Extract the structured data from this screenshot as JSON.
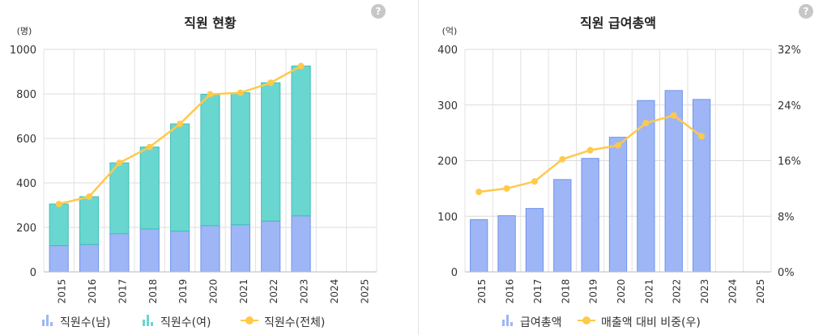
{
  "help_label": "?",
  "chart_data": [
    {
      "type": "bar",
      "title": "직원 현황",
      "y_unit": "(명)",
      "categories": [
        "2015",
        "2016",
        "2017",
        "2018",
        "2019",
        "2020",
        "2021",
        "2022",
        "2023",
        "2024",
        "2025"
      ],
      "ylim": [
        0,
        1000
      ],
      "yticks": [
        0,
        200,
        400,
        600,
        800,
        1000
      ],
      "stacked": true,
      "grid": true,
      "series": [
        {
          "name": "직원수(남)",
          "kind": "bar",
          "color": "#9eb6f5",
          "edge": "#6f93ec",
          "values": [
            118,
            123,
            172,
            193,
            183,
            208,
            212,
            228,
            252,
            null,
            null
          ]
        },
        {
          "name": "직원수(여)",
          "kind": "bar",
          "color": "#6ad6d0",
          "edge": "#3fbfb7",
          "values": [
            187,
            215,
            318,
            368,
            482,
            590,
            593,
            622,
            673,
            null,
            null
          ]
        },
        {
          "name": "직원수(전체)",
          "kind": "line",
          "color": "#ffc94a",
          "values": [
            305,
            338,
            490,
            561,
            665,
            798,
            805,
            850,
            925,
            null,
            null
          ]
        }
      ],
      "legend_position": "bottom"
    },
    {
      "type": "bar",
      "title": "직원 급여총액",
      "y_unit": "(억)",
      "categories": [
        "2015",
        "2016",
        "2017",
        "2018",
        "2019",
        "2020",
        "2021",
        "2022",
        "2023",
        "2024",
        "2025"
      ],
      "ylim": [
        0,
        400
      ],
      "yticks": [
        0,
        100,
        200,
        300,
        400
      ],
      "y2lim": [
        0,
        32
      ],
      "y2ticks": [
        "0%",
        "8%",
        "16%",
        "24%",
        "32%"
      ],
      "grid": true,
      "series": [
        {
          "name": "급여총액",
          "kind": "bar",
          "axis": "left",
          "color": "#9eb6f5",
          "edge": "#6f93ec",
          "values": [
            94,
            101,
            114,
            166,
            204,
            242,
            308,
            326,
            310,
            null,
            null
          ]
        },
        {
          "name": "매출액 대비 비중(우)",
          "kind": "line",
          "axis": "right",
          "color": "#ffc94a",
          "values": [
            11.5,
            12.0,
            13.0,
            16.2,
            17.5,
            18.2,
            21.4,
            22.5,
            19.5,
            null,
            null
          ]
        }
      ],
      "legend_position": "bottom"
    }
  ]
}
